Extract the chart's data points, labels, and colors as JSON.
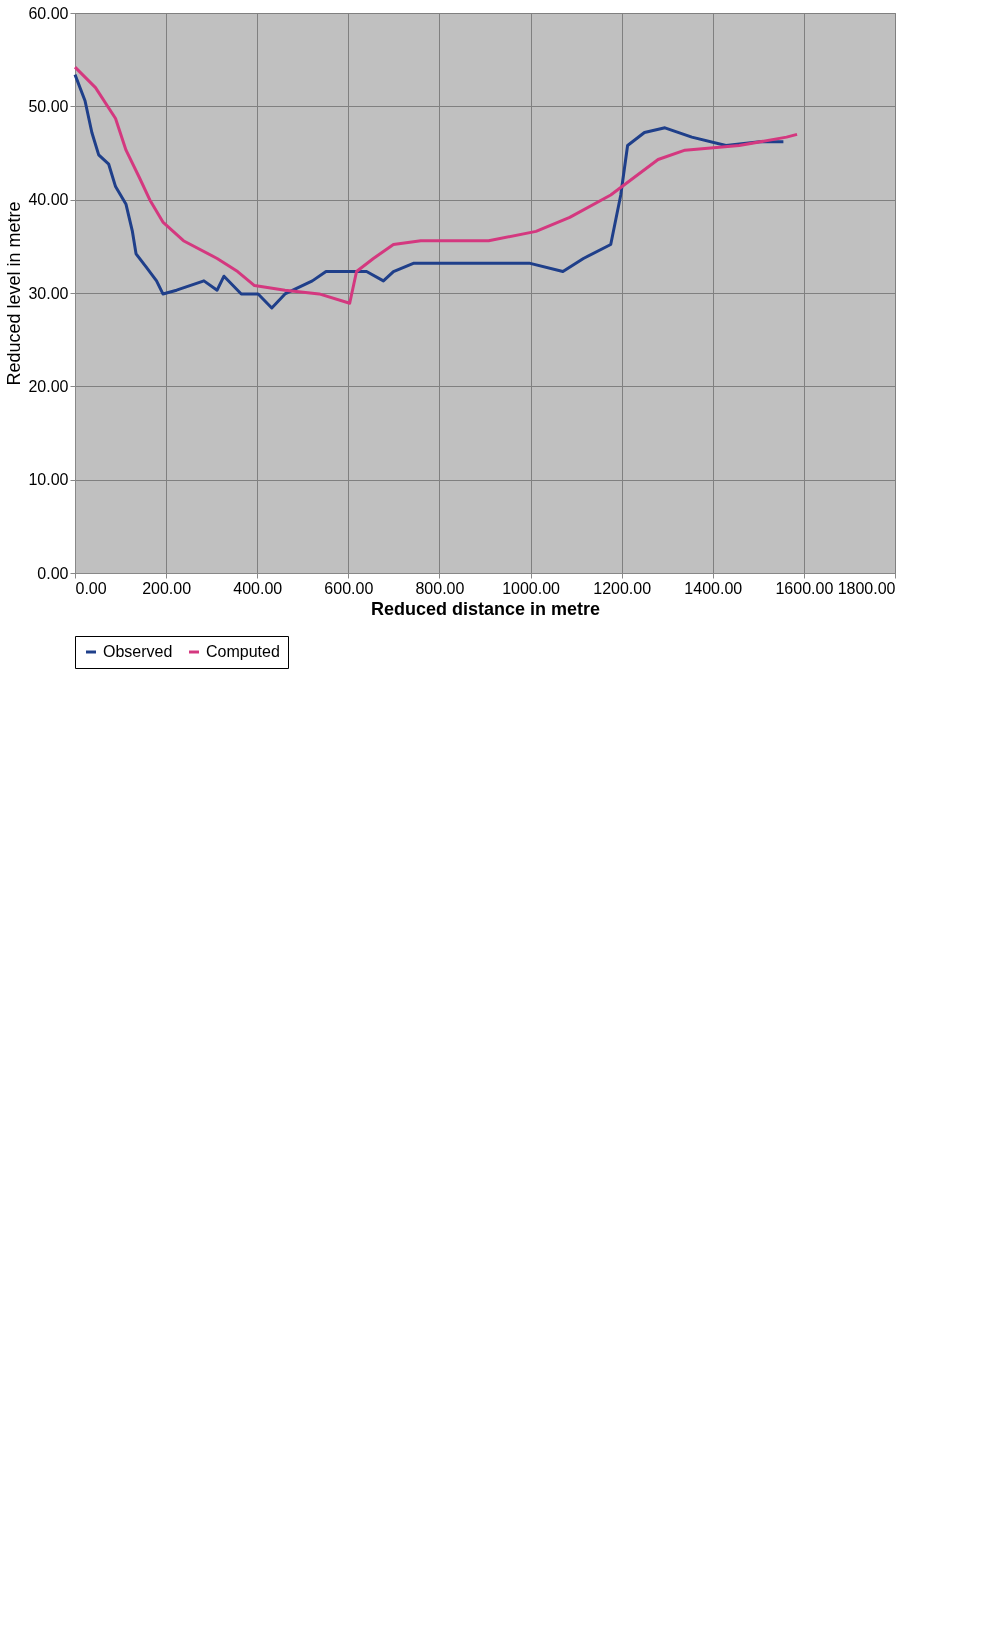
{
  "chart_data": {
    "type": "line",
    "xlabel": "Reduced distance in metre",
    "ylabel": "Reduced level in metre",
    "xlim": [
      0,
      1800
    ],
    "ylim": [
      0,
      60
    ],
    "xticks": [
      {
        "value": 0,
        "label": "0.00"
      },
      {
        "value": 200,
        "label": "200.00"
      },
      {
        "value": 400,
        "label": "400.00"
      },
      {
        "value": 600,
        "label": "600.00"
      },
      {
        "value": 800,
        "label": "800.00"
      },
      {
        "value": 1000,
        "label": "1000.00"
      },
      {
        "value": 1200,
        "label": "1200.00"
      },
      {
        "value": 1400,
        "label": "1400.00"
      },
      {
        "value": 1600,
        "label": "1600.00"
      },
      {
        "value": 1800,
        "label": "1800.00"
      }
    ],
    "yticks": [
      {
        "value": 0,
        "label": "0.00"
      },
      {
        "value": 10,
        "label": "10.00"
      },
      {
        "value": 20,
        "label": "20.00"
      },
      {
        "value": 30,
        "label": "30.00"
      },
      {
        "value": 40,
        "label": "40.00"
      },
      {
        "value": 50,
        "label": "50.00"
      },
      {
        "value": 60,
        "label": "60.00"
      }
    ],
    "grid": true,
    "legend": "bottom",
    "series": [
      {
        "name": "Observed",
        "color": "#1f3f8a",
        "x": [
          0,
          22,
          37,
          52,
          74,
          89,
          112,
          126,
          134,
          156,
          179,
          193,
          223,
          283,
          312,
          327,
          365,
          402,
          432,
          461,
          521,
          551,
          580,
          640,
          677,
          699,
          744,
          804,
          908,
          997,
          1071,
          1116,
          1176,
          1198,
          1213,
          1250,
          1295,
          1354,
          1429,
          1503,
          1555
        ],
        "values": [
          53.4,
          50.6,
          47.2,
          44.8,
          43.8,
          41.4,
          39.5,
          36.6,
          34.2,
          32.8,
          31.3,
          29.9,
          30.3,
          31.3,
          30.3,
          31.8,
          29.9,
          29.9,
          28.4,
          29.9,
          31.3,
          32.3,
          32.3,
          32.3,
          31.3,
          32.3,
          33.2,
          33.2,
          33.2,
          33.2,
          32.3,
          33.7,
          35.2,
          40.5,
          45.8,
          47.2,
          47.7,
          46.7,
          45.8,
          46.2,
          46.2
        ]
      },
      {
        "name": "Computed",
        "color": "#d4387f",
        "x": [
          0,
          45,
          89,
          112,
          141,
          164,
          193,
          238,
          312,
          357,
          394,
          461,
          536,
          603,
          618,
          655,
          699,
          759,
          908,
          1012,
          1086,
          1176,
          1280,
          1339,
          1458,
          1562,
          1585
        ],
        "values": [
          54.2,
          52.0,
          48.7,
          45.3,
          42.4,
          40.0,
          37.6,
          35.6,
          33.7,
          32.3,
          30.8,
          30.3,
          29.9,
          28.9,
          32.3,
          33.7,
          35.2,
          35.6,
          35.6,
          36.6,
          38.1,
          40.5,
          44.3,
          45.3,
          45.8,
          46.7,
          47.0
        ]
      }
    ]
  }
}
